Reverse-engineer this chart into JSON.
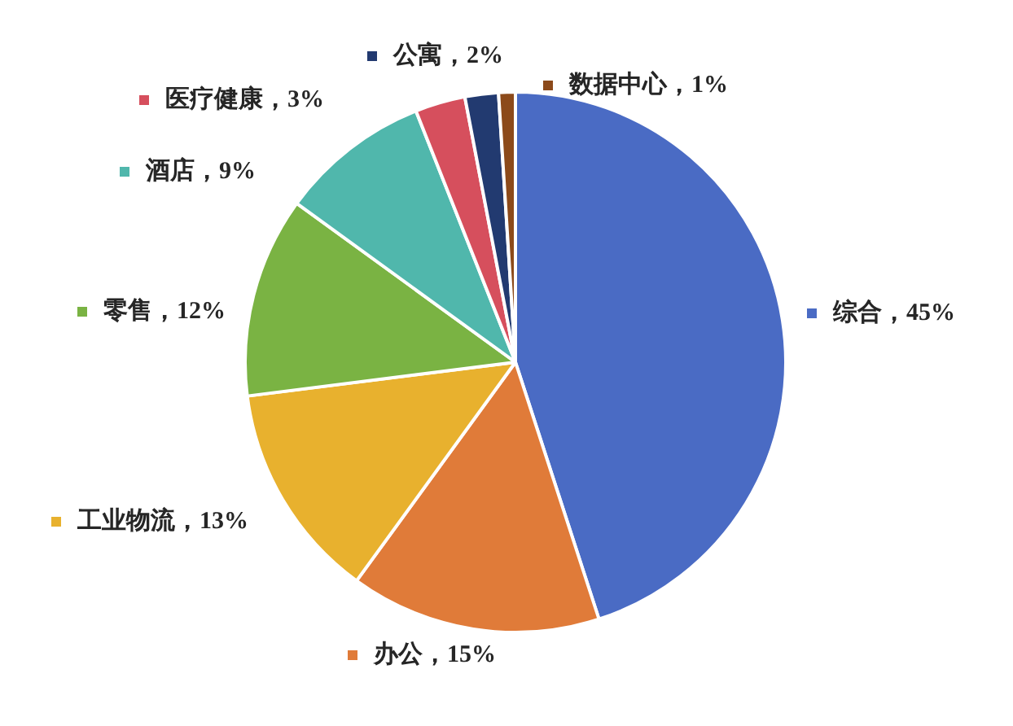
{
  "chart_data": {
    "type": "pie",
    "categories": [
      "综合",
      "办公",
      "工业物流",
      "零售",
      "酒店",
      "医疗健康",
      "公寓",
      "数据中心"
    ],
    "values": [
      45,
      15,
      13,
      12,
      9,
      3,
      2,
      1
    ],
    "colors": [
      "#4a6bc4",
      "#e07b39",
      "#e8b12e",
      "#7ab343",
      "#50b7ac",
      "#d64f5d",
      "#223a70",
      "#8c4a1a"
    ],
    "value_labels": [
      "45%",
      "15%",
      "13%",
      "12%",
      "9%",
      "3%",
      "2%",
      "1%"
    ],
    "legend": "left"
  }
}
